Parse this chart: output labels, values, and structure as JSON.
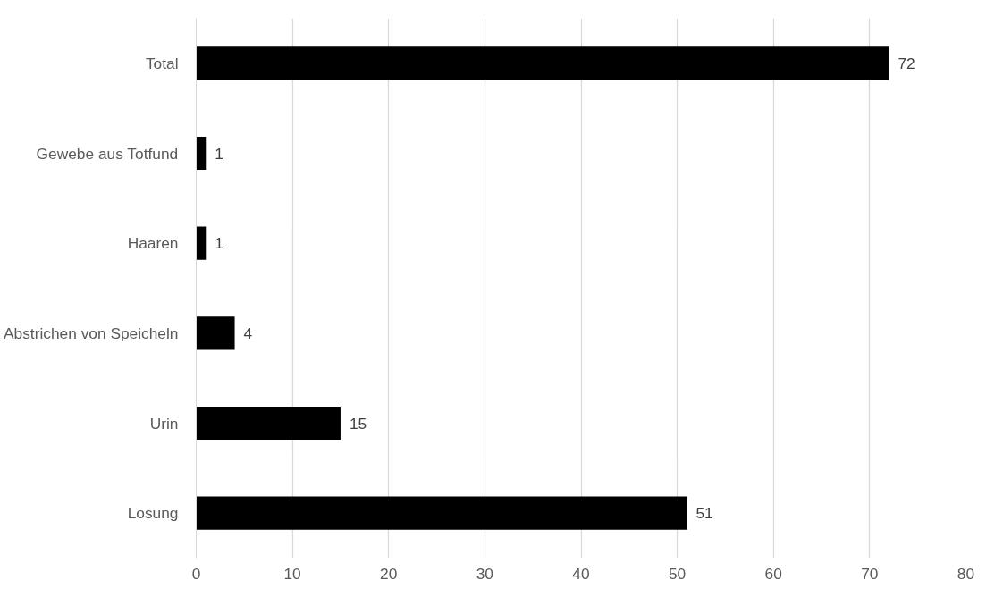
{
  "chart_data": {
    "type": "bar",
    "orientation": "horizontal",
    "categories": [
      "Total",
      "Gewebe aus Totfund",
      "Haaren",
      "Abstrichen von Speicheln",
      "Urin",
      "Losung"
    ],
    "values": [
      72,
      1,
      1,
      4,
      15,
      51
    ],
    "color": "#000000",
    "xlim": [
      0,
      80
    ],
    "xticks": [
      0,
      10,
      20,
      30,
      40,
      50,
      60,
      70,
      80
    ],
    "grid": "x",
    "data_labels": true
  }
}
